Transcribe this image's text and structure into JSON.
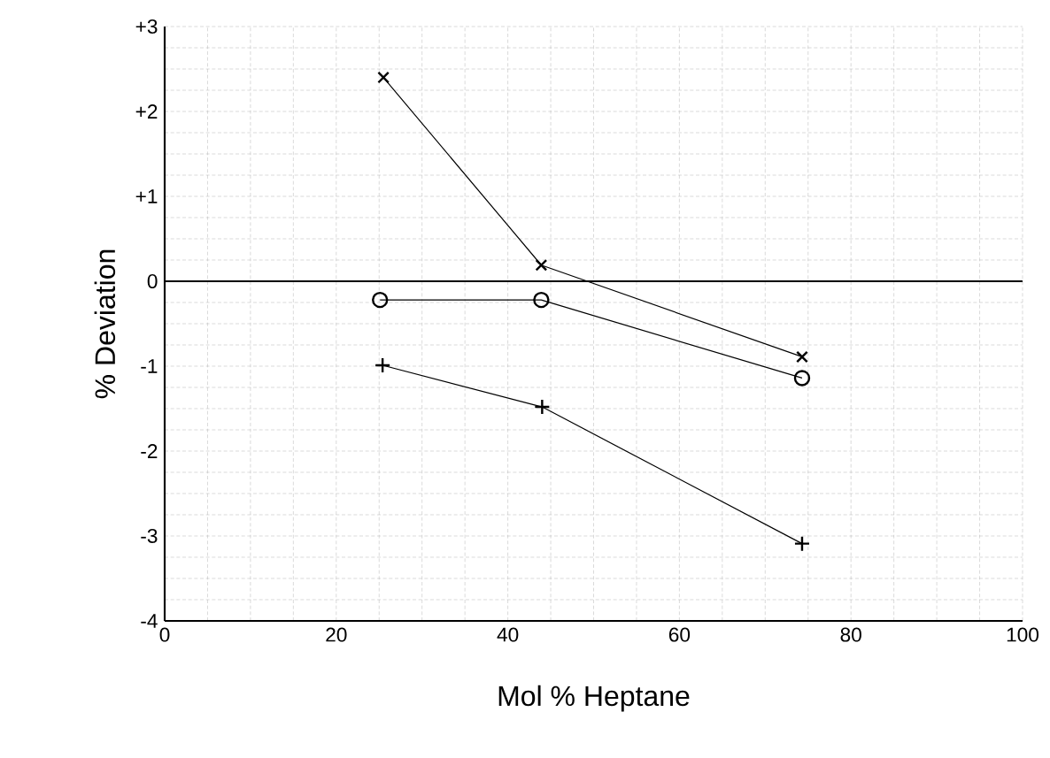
{
  "chart_data": {
    "type": "line",
    "xlabel": "Mol % Heptane",
    "ylabel": "% Deviation",
    "xlim": [
      0,
      100
    ],
    "ylim": [
      -4,
      3
    ],
    "xticks": [
      0,
      20,
      40,
      60,
      80,
      100
    ],
    "yticks": [
      {
        "value": 3,
        "label": "+3"
      },
      {
        "value": 2,
        "label": "+2"
      },
      {
        "value": 1,
        "label": "+1"
      },
      0,
      -1,
      -2,
      -3,
      -4
    ],
    "grid": true,
    "ref_lines": [
      {
        "axis": "y",
        "value": 0,
        "color": "#000000"
      }
    ],
    "series": [
      {
        "color": "#000000",
        "marker": "cross",
        "x": [
          25.5,
          43.9,
          74.3
        ],
        "values": [
          2.4,
          0.19,
          -0.89
        ]
      },
      {
        "color": "#000000",
        "marker": "circle",
        "x": [
          25.1,
          43.9,
          74.3
        ],
        "values": [
          -0.22,
          -0.22,
          -1.14
        ]
      },
      {
        "color": "#000000",
        "marker": "plus",
        "x": [
          25.4,
          44.0,
          74.3
        ],
        "values": [
          -0.99,
          -1.48,
          -3.09
        ]
      }
    ]
  }
}
